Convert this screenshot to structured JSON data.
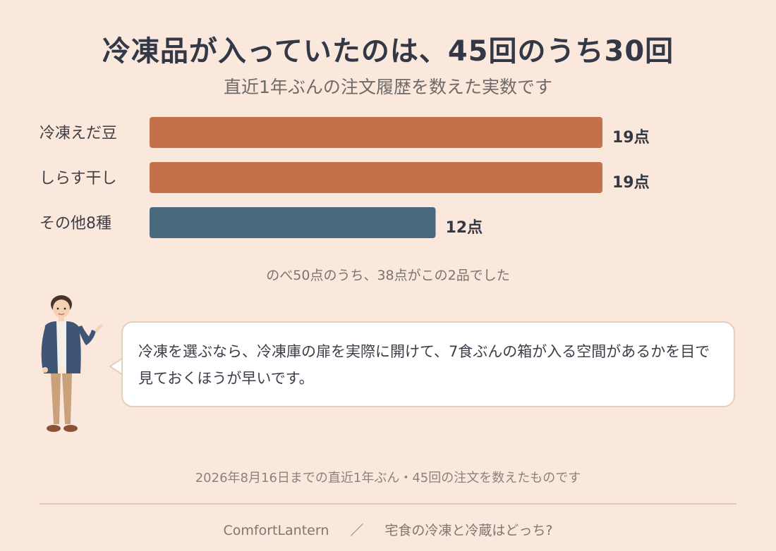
{
  "title": "冷凍品が入っていたのは、45回のうち30回",
  "subtitle": "直近1年ぶんの注文履歴を数えた実数です",
  "chart_data": {
    "type": "bar",
    "orientation": "horizontal",
    "categories": [
      "冷凍えだ豆",
      "しらす干し",
      "その他8種"
    ],
    "values": [
      19,
      19,
      12
    ],
    "value_labels": [
      "19点",
      "19点",
      "12点"
    ],
    "xlim": [
      0,
      19
    ],
    "colors": [
      "#c4704a",
      "#c4704a",
      "#4a687e"
    ],
    "grid": false
  },
  "note": "のべ50点のうち、38点がこの2品でした",
  "speech": "冷凍を選ぶなら、冷凍庫の扉を実際に開けて、7食ぶんの箱が入る空間があるかを目で見ておくほうが早いです。",
  "footnote": "2026年8月16日までの直近1年ぶん・45回の注文を数えたものです",
  "footer": {
    "brand": "ComfortLantern",
    "separator": "／",
    "article": "宅食の冷凍と冷蔵はどっち?"
  }
}
